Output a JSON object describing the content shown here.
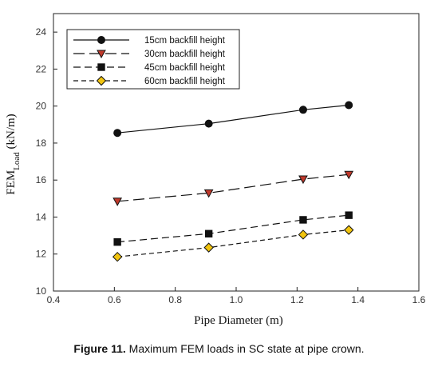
{
  "caption": {
    "label": "Figure 11.",
    "text": " Maximum FEM loads in SC state at pipe crown."
  },
  "chart_data": {
    "type": "line",
    "xlabel": "Pipe Diameter (m)",
    "ylabel_main": "FEM",
    "ylabel_sub": "Load",
    "ylabel_unit": " (kN/m)",
    "xlim": [
      0.4,
      1.6
    ],
    "ylim": [
      10,
      25
    ],
    "xticks": [
      0.4,
      0.6,
      0.8,
      1.0,
      1.2,
      1.4,
      1.6
    ],
    "xtick_labels": [
      "0.4",
      "0.6",
      "0.8",
      "1.0",
      "1.2",
      "1.4",
      "1.6"
    ],
    "yticks": [
      10,
      12,
      14,
      16,
      18,
      20,
      22,
      24
    ],
    "grid": false,
    "legend_position": "top-left",
    "x": [
      0.61,
      0.91,
      1.22,
      1.37
    ],
    "series": [
      {
        "name": "15cm backfill height",
        "values": [
          18.55,
          19.05,
          19.8,
          20.05
        ],
        "marker": "circle",
        "dash": "solid",
        "marker_color": "#111111",
        "line_color": "#111111"
      },
      {
        "name": "30cm backfill height",
        "values": [
          14.85,
          15.3,
          16.05,
          16.3
        ],
        "marker": "triangle-down",
        "dash": "long",
        "marker_color": "#c0392b",
        "line_color": "#111111"
      },
      {
        "name": "45cm backfill height",
        "values": [
          12.65,
          13.1,
          13.85,
          14.1
        ],
        "marker": "square",
        "dash": "medium",
        "marker_color": "#111111",
        "line_color": "#111111"
      },
      {
        "name": "60cm backfill height",
        "values": [
          11.85,
          12.35,
          13.05,
          13.3
        ],
        "marker": "diamond",
        "dash": "short",
        "marker_color": "#f1c40f",
        "line_color": "#111111"
      }
    ]
  }
}
